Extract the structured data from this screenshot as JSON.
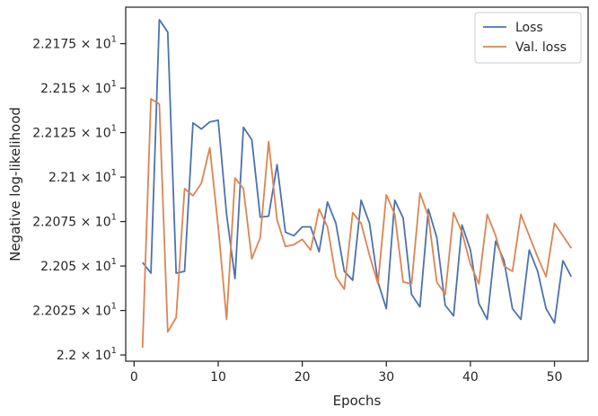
{
  "chart_data": {
    "type": "line",
    "xlabel": "Epochs",
    "ylabel": "Negative log-likelihood",
    "xlim": [
      -1,
      54
    ],
    "ylim": [
      21.9965,
      22.1955
    ],
    "x_ticks": [
      0,
      10,
      20,
      30,
      40,
      50
    ],
    "x_tick_labels": [
      "0",
      "10",
      "20",
      "30",
      "40",
      "50"
    ],
    "y_ticks": [
      22.0,
      22.025,
      22.05,
      22.075,
      22.1,
      22.125,
      22.15,
      22.175
    ],
    "y_tick_labels": [
      {
        "mantissa": "2.2",
        "exponent": "1"
      },
      {
        "mantissa": "2.2025",
        "exponent": "1"
      },
      {
        "mantissa": "2.205",
        "exponent": "1"
      },
      {
        "mantissa": "2.2075",
        "exponent": "1"
      },
      {
        "mantissa": "2.21",
        "exponent": "1"
      },
      {
        "mantissa": "2.2125",
        "exponent": "1"
      },
      {
        "mantissa": "2.215",
        "exponent": "1"
      },
      {
        "mantissa": "2.2175",
        "exponent": "1"
      }
    ],
    "times_symbol": "×",
    "base": "10",
    "legend_position": "top-right",
    "x": [
      1,
      2,
      3,
      4,
      5,
      6,
      7,
      8,
      9,
      10,
      11,
      12,
      13,
      14,
      15,
      16,
      17,
      18,
      19,
      20,
      21,
      22,
      23,
      24,
      25,
      26,
      27,
      28,
      29,
      30,
      31,
      32,
      33,
      34,
      35,
      36,
      37,
      38,
      39,
      40,
      41,
      42,
      43,
      44,
      45,
      46,
      47,
      48,
      49,
      50,
      51,
      52
    ],
    "series": [
      {
        "name": "Loss",
        "color": "#4c72b0",
        "values": [
          22.052,
          22.046,
          22.1885,
          22.1815,
          22.046,
          22.047,
          22.1305,
          22.127,
          22.131,
          22.132,
          22.079,
          22.043,
          22.128,
          22.121,
          22.0775,
          22.078,
          22.107,
          22.069,
          22.067,
          22.072,
          22.072,
          22.058,
          22.086,
          22.074,
          22.047,
          22.042,
          22.087,
          22.074,
          22.041,
          22.026,
          22.087,
          22.077,
          22.034,
          22.027,
          22.082,
          22.066,
          22.028,
          22.022,
          22.073,
          22.059,
          22.029,
          22.02,
          22.064,
          22.053,
          22.026,
          22.02,
          22.059,
          22.047,
          22.026,
          22.018,
          22.053,
          22.044
        ]
      },
      {
        "name": "Val. loss",
        "color": "#dd8452",
        "values": [
          22.004,
          22.144,
          22.141,
          22.013,
          22.021,
          22.0935,
          22.0895,
          22.0965,
          22.1165,
          22.072,
          22.02,
          22.0995,
          22.0935,
          22.054,
          22.066,
          22.12,
          22.076,
          22.061,
          22.062,
          22.065,
          22.059,
          22.082,
          22.072,
          22.044,
          22.037,
          22.08,
          22.074,
          22.056,
          22.04,
          22.09,
          22.079,
          22.041,
          22.04,
          22.091,
          22.078,
          22.041,
          22.034,
          22.08,
          22.069,
          22.051,
          22.04,
          22.079,
          22.067,
          22.05,
          22.047,
          22.079,
          22.067,
          22.055,
          22.044,
          22.074,
          22.067,
          22.06
        ]
      }
    ]
  }
}
